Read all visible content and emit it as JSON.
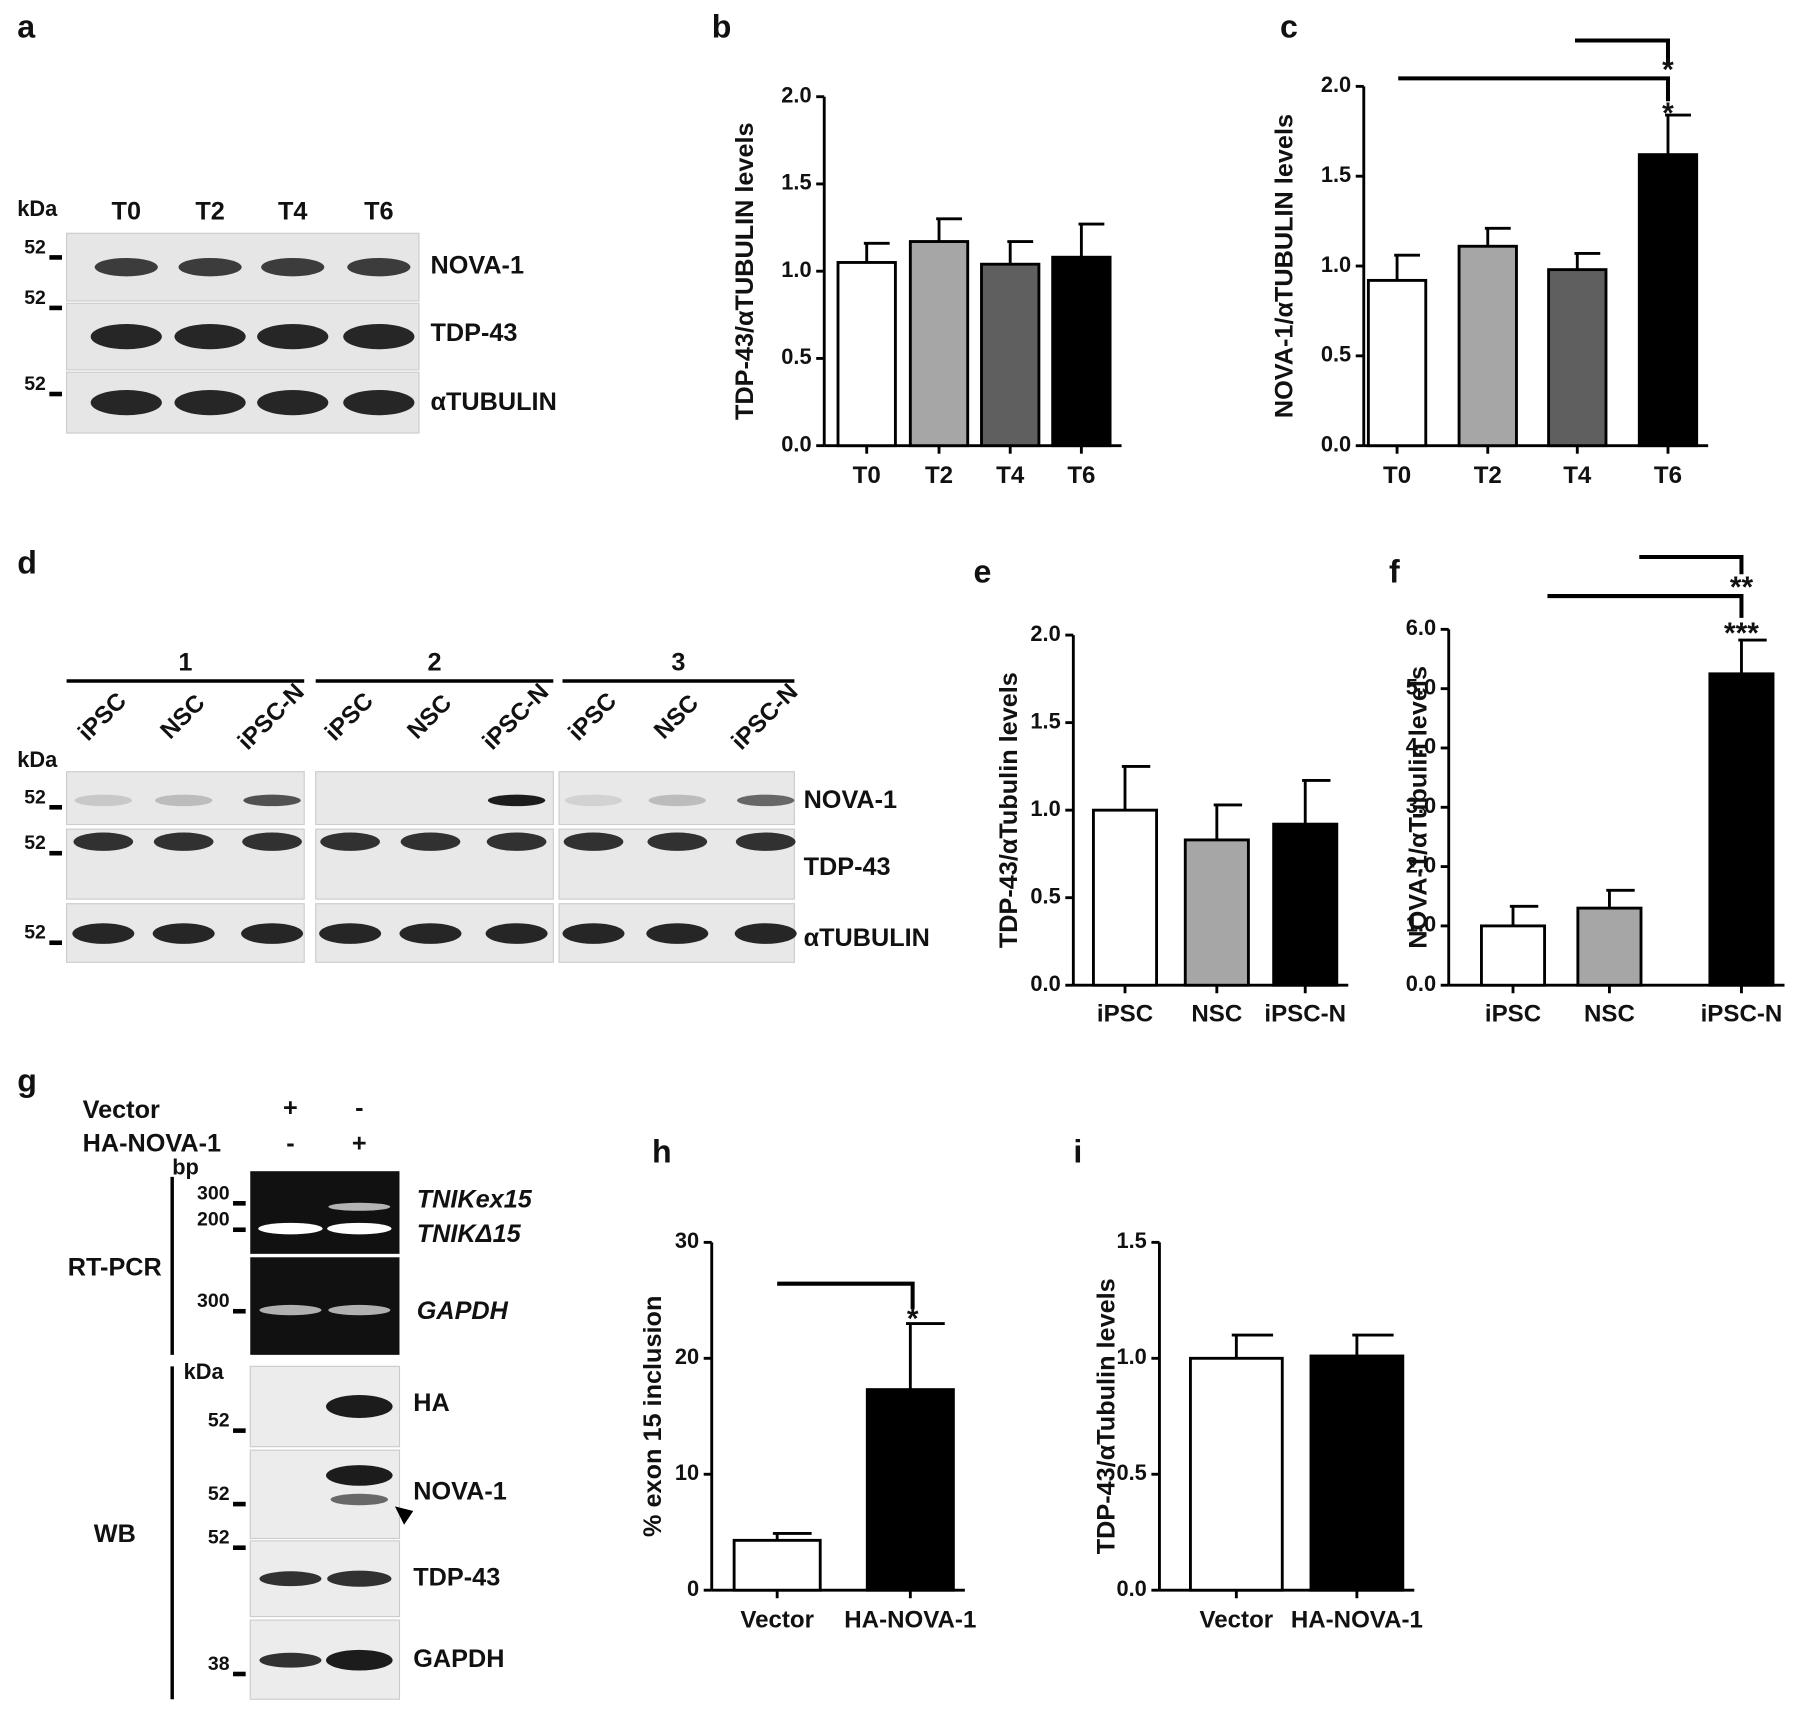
{
  "chart_data": [
    {
      "type": "bar",
      "panel": "b",
      "ylabel": "TDP-43/αTUBULIN levels",
      "categories": [
        "T0",
        "T2",
        "T4",
        "T6"
      ],
      "values": [
        1.05,
        1.17,
        1.04,
        1.08
      ],
      "errors": [
        0.11,
        0.13,
        0.13,
        0.19
      ],
      "colors": [
        "#ffffff",
        "#a6a6a6",
        "#5f5f5f",
        "#000000"
      ],
      "ylim": [
        0,
        2
      ],
      "yticks": [
        {
          "value": 0,
          "label": "0.0"
        },
        {
          "value": 0.5,
          "label": "0.5"
        },
        {
          "value": 1,
          "label": "1.0"
        },
        {
          "value": 1.5,
          "label": "1.5"
        },
        {
          "value": 2,
          "label": "2.0"
        }
      ]
    },
    {
      "type": "bar",
      "panel": "c",
      "ylabel": "NOVA-1/αTUBULIN levels",
      "categories": [
        "T0",
        "T2",
        "T4",
        "T6"
      ],
      "values": [
        0.92,
        1.11,
        0.98,
        1.62
      ],
      "errors": [
        0.14,
        0.1,
        0.09,
        0.22
      ],
      "colors": [
        "#ffffff",
        "#a6a6a6",
        "#5f5f5f",
        "#000000"
      ],
      "ylim": [
        0,
        2
      ],
      "yticks": [
        {
          "value": 0,
          "label": "0.0"
        },
        {
          "value": 0.5,
          "label": "0.5"
        },
        {
          "value": 1,
          "label": "1.0"
        },
        {
          "value": 1.5,
          "label": "1.5"
        },
        {
          "value": 2,
          "label": "2.0"
        }
      ],
      "annotations": [
        "*",
        "*"
      ]
    },
    {
      "type": "bar",
      "panel": "e",
      "ylabel": "TDP-43/αTubulin levels",
      "categories": [
        "iPSC",
        "NSC",
        "iPSC-N"
      ],
      "values": [
        1.0,
        0.83,
        0.92
      ],
      "errors": [
        0.25,
        0.2,
        0.25
      ],
      "colors": [
        "#ffffff",
        "#a6a6a6",
        "#000000"
      ],
      "ylim": [
        0,
        2
      ],
      "yticks": [
        {
          "value": 0,
          "label": "0.0"
        },
        {
          "value": 0.5,
          "label": "0.5"
        },
        {
          "value": 1,
          "label": "1.0"
        },
        {
          "value": 1.5,
          "label": "1.5"
        },
        {
          "value": 2,
          "label": "2.0"
        }
      ]
    },
    {
      "type": "bar",
      "panel": "f",
      "ylabel": "NOVA-1/αTubulin levels",
      "categories": [
        "iPSC",
        "NSC",
        "iPSC-N"
      ],
      "values": [
        1.0,
        1.3,
        5.25
      ],
      "errors": [
        0.33,
        0.3,
        0.57
      ],
      "colors": [
        "#ffffff",
        "#a6a6a6",
        "#000000"
      ],
      "ylim": [
        0,
        6
      ],
      "yticks": [
        {
          "value": 0,
          "label": "0.0"
        },
        {
          "value": 1,
          "label": "1.0"
        },
        {
          "value": 2,
          "label": "2.0"
        },
        {
          "value": 3,
          "label": "3.0"
        },
        {
          "value": 4,
          "label": "4.0"
        },
        {
          "value": 5,
          "label": "5.0"
        },
        {
          "value": 6,
          "label": "6.0"
        }
      ],
      "annotations": [
        "**",
        "***"
      ]
    },
    {
      "type": "bar",
      "panel": "h",
      "ylabel": "% exon 15 inclusion",
      "categories": [
        "Vector",
        "HA-NOVA-1"
      ],
      "values": [
        4.3,
        17.3
      ],
      "errors": [
        0.6,
        5.7
      ],
      "colors": [
        "#ffffff",
        "#000000"
      ],
      "ylim": [
        0,
        30
      ],
      "yticks": [
        0,
        10,
        20,
        30
      ],
      "annotations": [
        "*"
      ]
    },
    {
      "type": "bar",
      "panel": "i",
      "ylabel": "TDP-43/αTubulin levels",
      "categories": [
        "Vector",
        "HA-NOVA-1"
      ],
      "values": [
        1.0,
        1.01
      ],
      "errors": [
        0.1,
        0.09
      ],
      "colors": [
        "#ffffff",
        "#000000"
      ],
      "ylim": [
        0,
        1.5
      ],
      "yticks": [
        {
          "value": 0,
          "label": "0.0"
        },
        {
          "value": 0.5,
          "label": "0.5"
        },
        {
          "value": 1,
          "label": "1.0"
        },
        {
          "value": 1.5,
          "label": "1.5"
        }
      ]
    }
  ],
  "blots": [
    {
      "panel": "a",
      "unit": "kDa",
      "lanes": [
        "T0",
        "T2",
        "T4",
        "T6"
      ],
      "markers": [
        "52",
        "52",
        "52"
      ],
      "rows": [
        "NOVA-1",
        "TDP-43",
        "αTUBULIN"
      ]
    },
    {
      "panel": "d",
      "groups": [
        "1",
        "2",
        "3"
      ],
      "unit": "kDa",
      "lanes": [
        "iPSC",
        "NSC",
        "iPSC-N",
        "iPSC",
        "NSC",
        "iPSC-N",
        "iPSC",
        "NSC",
        "iPSC-N"
      ],
      "markers": [
        "52",
        "52",
        "52"
      ],
      "rows": [
        "NOVA-1",
        "TDP-43",
        "αTUBULIN"
      ]
    },
    {
      "panel": "g",
      "conditions": [
        "Vector",
        "HA-NOVA-1"
      ],
      "signs": [
        [
          "+",
          "-"
        ],
        [
          "-",
          "+"
        ]
      ],
      "sections": [
        "RT-PCR",
        "WB"
      ],
      "pcr_unit": "bp",
      "pcr_markers": [
        "300",
        "200",
        "300"
      ],
      "pcr_rows": [
        "TNIKex15",
        "TNIKΔ15",
        "GAPDH"
      ],
      "unit": "kDa",
      "markers": [
        "52",
        "52",
        "52",
        "38"
      ],
      "rows": [
        "HA",
        "NOVA-1",
        "TDP-43",
        "GAPDH"
      ]
    }
  ]
}
